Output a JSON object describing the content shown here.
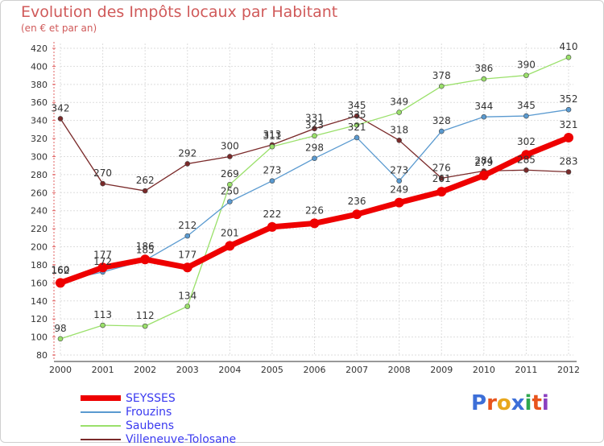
{
  "title": "Evolution des Impôts locaux par Habitant",
  "subtitle": "(en € et par an)",
  "logo": {
    "text": "Proxiti",
    "letters": [
      "P",
      "r",
      "o",
      "x",
      "i",
      "t",
      "i"
    ],
    "colors": [
      "#3d6fd8",
      "#e8541c",
      "#e8a71c",
      "#3d6fd8",
      "#2fa84f",
      "#e8541c",
      "#8a3fc0"
    ]
  },
  "chart_data": {
    "type": "line",
    "x": [
      "2000",
      "2001",
      "2002",
      "2003",
      "2004",
      "2005",
      "2006",
      "2007",
      "2008",
      "2009",
      "2010",
      "2011",
      "2012"
    ],
    "ylim": [
      80,
      420
    ],
    "yticks": [
      "80",
      "100",
      "120",
      "140",
      "160",
      "180",
      "200",
      "220",
      "240",
      "260",
      "280",
      "300",
      "320",
      "340",
      "360",
      "380",
      "400",
      "420"
    ],
    "grid": true,
    "legend_position": "bottom-left",
    "series": [
      {
        "name": "Villeneuve-Tolosane",
        "color": "#7a2a2a",
        "values": [
          342,
          270,
          262,
          292,
          300,
          313,
          331,
          345,
          318,
          276,
          284,
          285,
          283
        ],
        "labels": [
          "342",
          "270",
          "262",
          "292",
          "300",
          "313",
          "331",
          "345",
          "318",
          "276",
          "284",
          "285",
          "283"
        ]
      },
      {
        "name": "Saubens",
        "color": "#9ae06a",
        "values": [
          98,
          113,
          112,
          134,
          269,
          311,
          323,
          335,
          349,
          378,
          386,
          390,
          410
        ],
        "labels": [
          "98",
          "113",
          "112",
          "134",
          "269",
          "311",
          "323",
          "335",
          "349",
          "378",
          "386",
          "390",
          "410"
        ]
      },
      {
        "name": "Frouzins",
        "color": "#5a9ad0",
        "values": [
          162,
          172,
          185,
          212,
          250,
          273,
          298,
          321,
          273,
          328,
          344,
          345,
          352
        ],
        "labels": [
          "162",
          "172",
          "185",
          "212",
          "250",
          "273",
          "298",
          "321",
          "273",
          "328",
          "344",
          "345",
          "352"
        ]
      },
      {
        "name": "SEYSSES",
        "color": "#ee0000",
        "values": [
          160,
          177,
          186,
          177,
          201,
          222,
          226,
          236,
          249,
          261,
          279,
          302,
          321
        ],
        "labels": [
          "160",
          "177",
          "186",
          "177",
          "201",
          "222",
          "226",
          "236",
          "249",
          "261",
          "279",
          "302",
          "321"
        ]
      }
    ]
  }
}
